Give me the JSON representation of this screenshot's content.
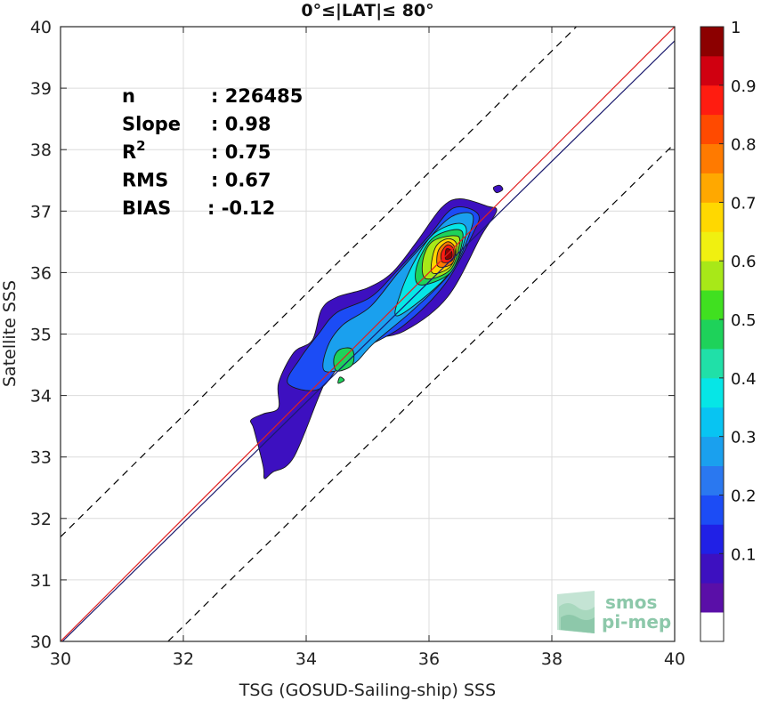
{
  "chart_data": {
    "type": "heatmap",
    "title": "0°≤|LAT|≤ 80°",
    "xlabel": "TSG (GOSUD-Sailing-ship) SSS",
    "ylabel": "Satellite SSS",
    "xlim": [
      30,
      40
    ],
    "ylim": [
      30,
      40
    ],
    "x_ticks": [
      "30",
      "32",
      "34",
      "36",
      "38",
      "40"
    ],
    "y_ticks": [
      "30",
      "31",
      "32",
      "33",
      "34",
      "35",
      "36",
      "37",
      "38",
      "39",
      "40"
    ],
    "grid": true,
    "reference_lines": [
      {
        "name": "1:1",
        "color": "#e02020",
        "style": "solid",
        "points": [
          [
            30,
            30
          ],
          [
            40,
            40
          ]
        ]
      },
      {
        "name": "regression",
        "color": "#1a1a6e",
        "style": "solid",
        "points": [
          [
            30,
            29.97
          ],
          [
            40,
            39.77
          ]
        ]
      },
      {
        "name": "+2 offset",
        "color": "#000000",
        "style": "dashed",
        "points": [
          [
            30,
            31.7
          ],
          [
            38.4,
            40
          ]
        ]
      },
      {
        "name": "-2 offset",
        "color": "#000000",
        "style": "dashed",
        "points": [
          [
            31.75,
            30
          ],
          [
            40,
            38.1
          ]
        ]
      }
    ],
    "density_levels": [
      {
        "level": 0.05,
        "outline": [
          [
            33.15,
            33.45
          ],
          [
            33.3,
            32.85
          ],
          [
            33.32,
            32.65
          ],
          [
            33.45,
            32.75
          ],
          [
            33.8,
            33.0
          ],
          [
            34.3,
            34.2
          ],
          [
            34.6,
            34.6
          ],
          [
            35.0,
            34.9
          ],
          [
            35.6,
            35.05
          ],
          [
            36.3,
            35.6
          ],
          [
            36.85,
            36.6
          ],
          [
            37.1,
            37.0
          ],
          [
            36.95,
            37.08
          ],
          [
            36.5,
            37.2
          ],
          [
            36.2,
            37.05
          ],
          [
            35.8,
            36.5
          ],
          [
            35.4,
            36.0
          ],
          [
            35.0,
            35.75
          ],
          [
            34.5,
            35.6
          ],
          [
            34.25,
            35.4
          ],
          [
            34.1,
            34.9
          ],
          [
            33.8,
            34.7
          ],
          [
            33.55,
            34.2
          ],
          [
            33.55,
            33.8
          ],
          [
            33.3,
            33.7
          ],
          [
            33.1,
            33.6
          ]
        ]
      },
      {
        "level": 0.15,
        "outline": [
          [
            33.7,
            34.2
          ],
          [
            34.2,
            34.1
          ],
          [
            34.6,
            34.55
          ],
          [
            35.0,
            34.8
          ],
          [
            35.6,
            35.15
          ],
          [
            36.25,
            35.8
          ],
          [
            36.7,
            36.6
          ],
          [
            36.8,
            36.95
          ],
          [
            36.4,
            37.05
          ],
          [
            36.0,
            36.6
          ],
          [
            35.5,
            36.05
          ],
          [
            35.05,
            35.6
          ],
          [
            34.5,
            35.35
          ],
          [
            34.2,
            35.0
          ],
          [
            33.9,
            34.6
          ]
        ]
      },
      {
        "level": 0.25,
        "outline": [
          [
            34.3,
            34.4
          ],
          [
            34.75,
            34.5
          ],
          [
            35.1,
            34.85
          ],
          [
            35.75,
            35.4
          ],
          [
            36.35,
            36.0
          ],
          [
            36.65,
            36.6
          ],
          [
            36.7,
            36.95
          ],
          [
            36.35,
            36.9
          ],
          [
            35.95,
            36.5
          ],
          [
            35.5,
            36.0
          ],
          [
            35.05,
            35.45
          ],
          [
            34.6,
            35.15
          ],
          [
            34.35,
            34.8
          ]
        ]
      },
      {
        "level": 0.35,
        "outline": [
          [
            35.5,
            35.3
          ],
          [
            36.3,
            35.95
          ],
          [
            36.6,
            36.6
          ],
          [
            36.5,
            36.8
          ],
          [
            36.1,
            36.65
          ],
          [
            35.8,
            36.25
          ],
          [
            35.55,
            35.7
          ]
        ]
      },
      {
        "level": 0.45,
        "outline": [
          [
            34.5,
            34.4
          ],
          [
            34.75,
            34.5
          ],
          [
            34.75,
            34.75
          ],
          [
            34.55,
            34.75
          ],
          [
            34.45,
            34.6
          ]
        ]
      },
      {
        "level": 0.45,
        "outline": [
          [
            35.85,
            35.8
          ],
          [
            36.35,
            36.0
          ],
          [
            36.55,
            36.55
          ],
          [
            36.45,
            36.7
          ],
          [
            36.05,
            36.55
          ],
          [
            35.8,
            36.1
          ]
        ]
      },
      {
        "level": 0.55,
        "outline": [
          [
            35.95,
            35.9
          ],
          [
            36.35,
            36.05
          ],
          [
            36.5,
            36.5
          ],
          [
            36.4,
            36.6
          ],
          [
            36.05,
            36.5
          ],
          [
            35.9,
            36.2
          ]
        ]
      },
      {
        "level": 0.65,
        "outline": [
          [
            36.05,
            36.0
          ],
          [
            36.35,
            36.1
          ],
          [
            36.45,
            36.45
          ],
          [
            36.3,
            36.55
          ],
          [
            36.1,
            36.4
          ]
        ]
      },
      {
        "level": 0.75,
        "outline": [
          [
            36.15,
            36.1
          ],
          [
            36.38,
            36.15
          ],
          [
            36.42,
            36.4
          ],
          [
            36.3,
            36.5
          ],
          [
            36.15,
            36.35
          ]
        ]
      },
      {
        "level": 0.85,
        "outline": [
          [
            36.22,
            36.17
          ],
          [
            36.38,
            36.2
          ],
          [
            36.4,
            36.38
          ],
          [
            36.3,
            36.45
          ],
          [
            36.2,
            36.32
          ]
        ]
      },
      {
        "level": 0.95,
        "outline": [
          [
            36.27,
            36.22
          ],
          [
            36.37,
            36.25
          ],
          [
            36.36,
            36.36
          ],
          [
            36.28,
            36.38
          ]
        ]
      },
      {
        "level": 0.05,
        "outline": [
          [
            37.1,
            37.3
          ],
          [
            37.2,
            37.35
          ],
          [
            37.15,
            37.42
          ],
          [
            37.05,
            37.38
          ]
        ]
      },
      {
        "level": 0.45,
        "outline": [
          [
            34.52,
            34.2
          ],
          [
            34.62,
            34.25
          ],
          [
            34.55,
            34.3
          ]
        ]
      }
    ],
    "colorbar": {
      "ticks": [
        "0.1",
        "0.2",
        "0.3",
        "0.4",
        "0.5",
        "0.6",
        "0.7",
        "0.8",
        "0.9",
        "1"
      ],
      "range": [
        0,
        1
      ],
      "levels": 20,
      "colors": [
        "#ffffff",
        "#5a0fa8",
        "#3d10c0",
        "#2020e6",
        "#1c4cf5",
        "#2a78f0",
        "#1aa0ee",
        "#08c4f2",
        "#06e6e6",
        "#20e0a8",
        "#1ed25a",
        "#40e020",
        "#a8e818",
        "#f0f010",
        "#ffd800",
        "#ffa800",
        "#ff7a00",
        "#ff4a00",
        "#ff1c10",
        "#d00010",
        "#8c0000"
      ]
    },
    "annotations": [
      {
        "label": "n",
        "value": ": 226485"
      },
      {
        "label": "Slope",
        "value": ": 0.98"
      },
      {
        "label": "R",
        "superscript": "2",
        "value": ": 0.75"
      },
      {
        "label": "RMS",
        "value": ": 0.67"
      },
      {
        "label": "BIAS",
        "value": ": -0.12"
      }
    ]
  },
  "logo": {
    "line1": "smos",
    "line2": "pi-mep",
    "color": "#8dc8aa"
  }
}
